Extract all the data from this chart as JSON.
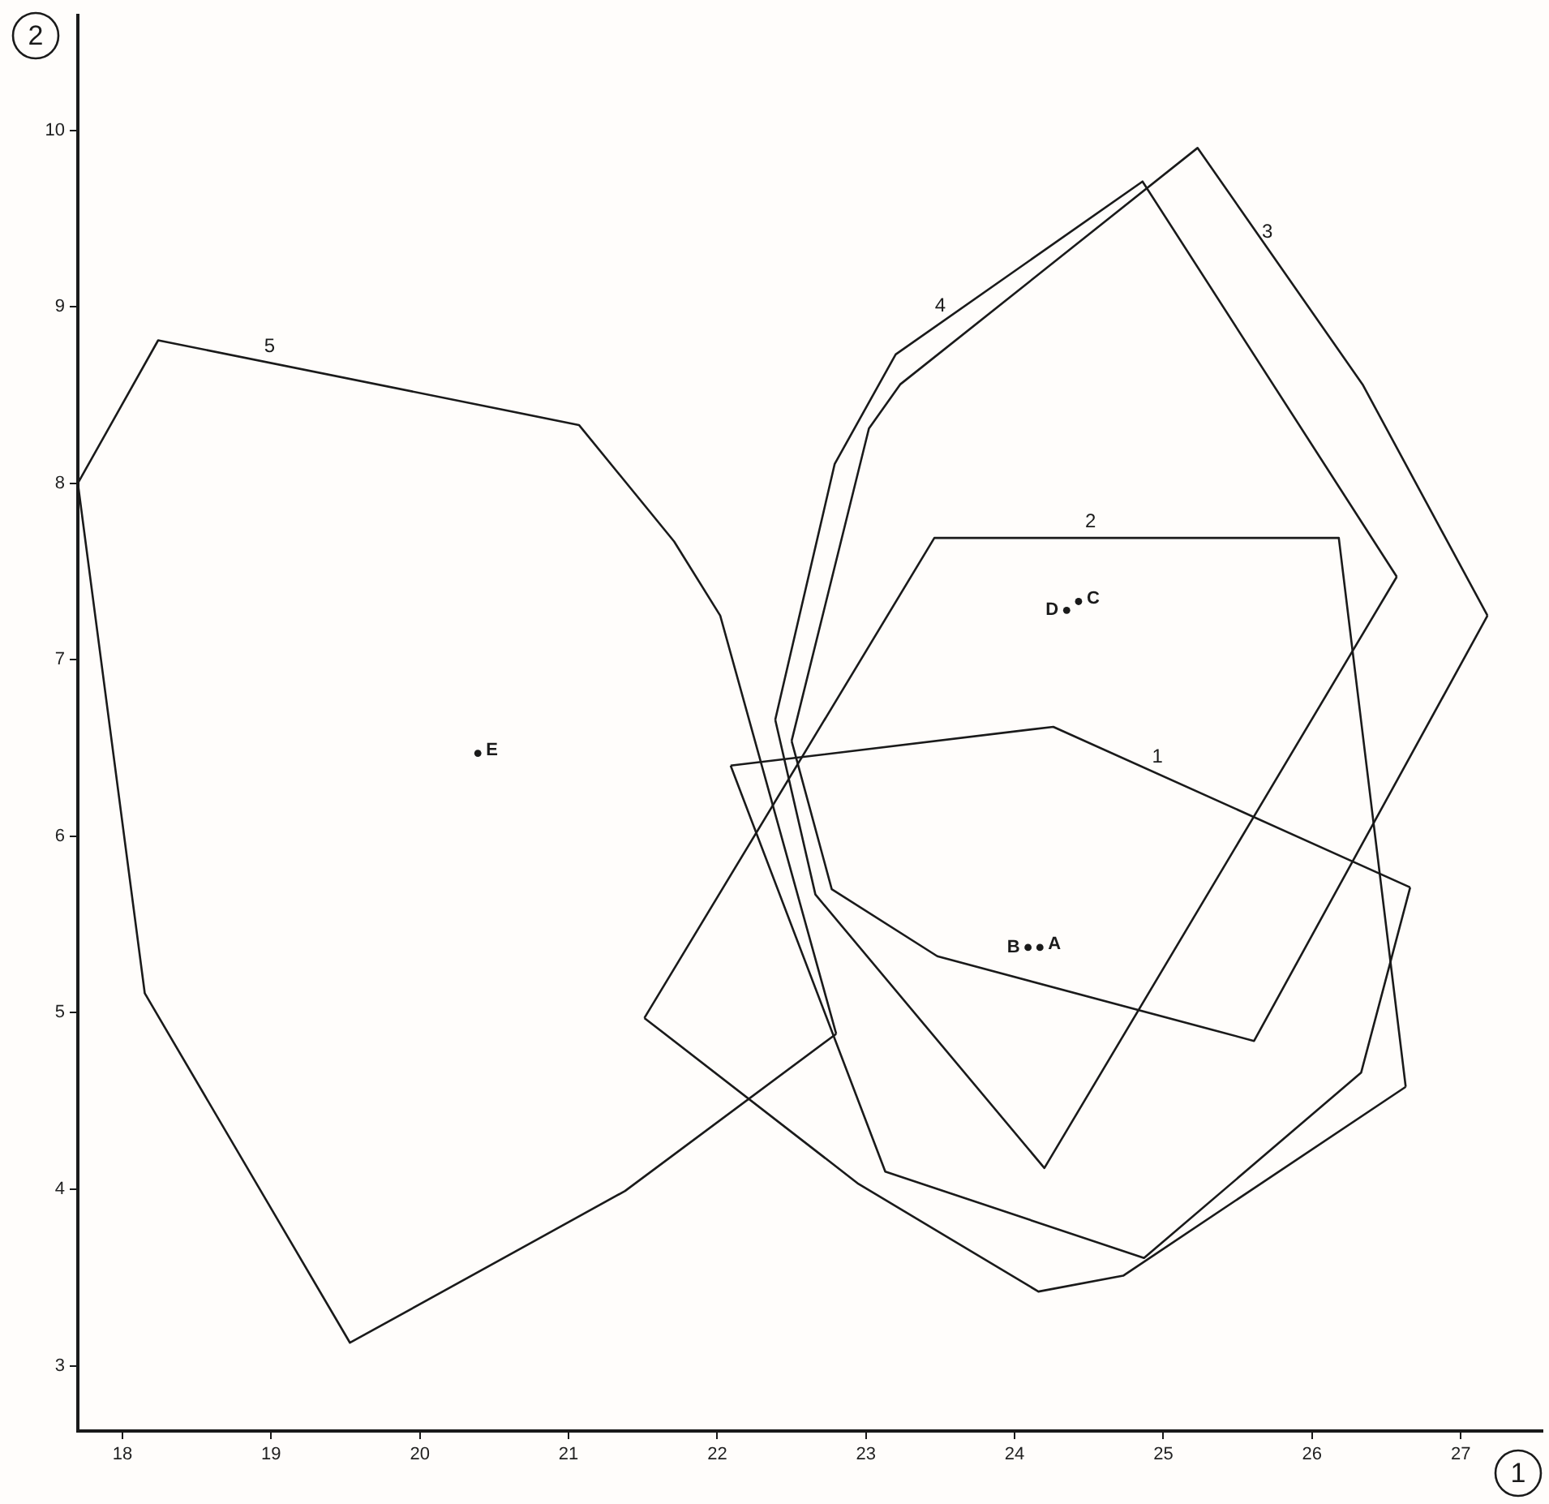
{
  "chart_data": {
    "type": "line",
    "xlabel": "1",
    "ylabel": "2",
    "xlim": [
      17.7,
      27.55
    ],
    "ylim": [
      2.63,
      10.65
    ],
    "xticks": [
      18,
      19,
      20,
      21,
      22,
      23,
      24,
      25,
      26,
      27
    ],
    "yticks": [
      3,
      4,
      5,
      6,
      7,
      8,
      9,
      10
    ],
    "grid": false,
    "legend": false,
    "marker": "none",
    "series": [
      {
        "color": "#1a1a1a",
        "x": [
          22.09,
          24.26,
          26.66
        ],
        "values": [
          6.4,
          6.62,
          5.71
        ]
      },
      {
        "color": "#1a1a1a",
        "x": [
          22.09,
          23.13,
          24.87,
          26.33,
          26.66
        ],
        "values": [
          6.4,
          4.1,
          3.61,
          4.66,
          5.71
        ]
      },
      {
        "color": "#1a1a1a",
        "x": [
          21.51,
          23.46,
          26.18,
          26.63
        ],
        "values": [
          4.97,
          7.69,
          7.69,
          4.58
        ]
      },
      {
        "color": "#1a1a1a",
        "x": [
          21.51,
          22.95,
          24.16,
          24.73,
          26.63
        ],
        "values": [
          4.97,
          4.03,
          3.42,
          3.51,
          4.58
        ]
      },
      {
        "color": "#1a1a1a",
        "x": [
          22.5,
          23.02,
          23.23,
          25.23,
          26.34,
          27.18
        ],
        "values": [
          6.54,
          8.31,
          8.56,
          9.9,
          8.56,
          7.25
        ]
      },
      {
        "color": "#1a1a1a",
        "x": [
          22.5,
          22.77,
          23.48,
          25.61,
          27.18
        ],
        "values": [
          6.54,
          5.7,
          5.32,
          4.84,
          7.25
        ]
      },
      {
        "color": "#1a1a1a",
        "x": [
          22.39,
          22.79,
          23.2,
          24.86,
          26.57
        ],
        "values": [
          6.66,
          8.11,
          8.73,
          9.71,
          7.47
        ]
      },
      {
        "color": "#1a1a1a",
        "x": [
          22.39,
          22.66,
          24.2,
          26.57
        ],
        "values": [
          6.66,
          5.67,
          4.12,
          7.47
        ]
      },
      {
        "color": "#1a1a1a",
        "x": [
          17.7,
          18.24,
          21.07,
          21.71,
          22.02,
          22.8
        ],
        "values": [
          8.0,
          8.81,
          8.33,
          7.67,
          7.25,
          4.88
        ]
      },
      {
        "color": "#1a1a1a",
        "x": [
          17.7,
          18.15,
          19.53,
          21.38,
          22.8
        ],
        "values": [
          8.0,
          5.11,
          3.13,
          3.99,
          4.88
        ]
      },
      {
        "type": "scatter",
        "marker": "circle",
        "color": "#1a1a1a",
        "x": [
          24.17,
          24.09,
          24.43,
          24.35,
          20.39
        ],
        "values": [
          5.37,
          5.37,
          7.33,
          7.28,
          6.47
        ]
      }
    ],
    "annotations": [
      {
        "text": "1",
        "x": 24.96,
        "y": 6.355
      },
      {
        "text": "2",
        "x": 24.51,
        "y": 7.69
      },
      {
        "text": "3",
        "x": 25.7,
        "y": 9.33
      },
      {
        "text": "4",
        "x": 23.5,
        "y": 8.91
      },
      {
        "text": "5",
        "x": 18.99,
        "y": 8.68
      },
      {
        "text": "A",
        "x": 24.17,
        "y": 5.37
      },
      {
        "text": "B",
        "x": 24.09,
        "y": 5.37
      },
      {
        "text": "C",
        "x": 24.43,
        "y": 7.33
      },
      {
        "text": "D",
        "x": 24.35,
        "y": 7.28
      },
      {
        "text": "E",
        "x": 20.39,
        "y": 6.47
      }
    ]
  }
}
